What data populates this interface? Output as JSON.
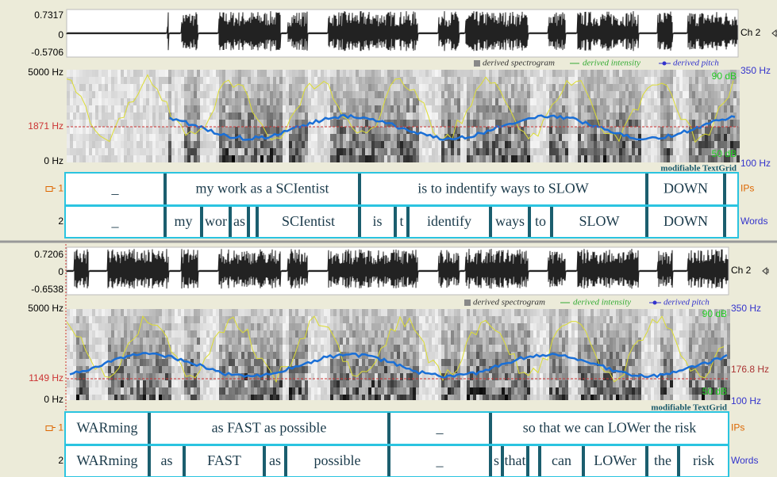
{
  "panels": [
    {
      "waveform": {
        "max": "0.7317",
        "zero": "0",
        "min": "-0.5706",
        "channel": "Ch 2"
      },
      "legend": {
        "spectrogram": "derived spectrogram",
        "intensity": "derived intensity",
        "pitch": "derived pitch"
      },
      "spectrogram": {
        "top": "5000 Hz",
        "marker": "1871 Hz",
        "bottom": "0 Hz",
        "pitch_top": "350 Hz",
        "pitch_bottom": "100 Hz",
        "db_top": "90 dB",
        "db_bottom": "50 dB"
      },
      "textgrid_label": "modifiable TextGrid",
      "tiers": [
        {
          "number": "1",
          "name": "IPs",
          "intervals": [
            "_",
            "my work as a SCIentist",
            "is to indentify ways to SLOW",
            "DOWN"
          ]
        },
        {
          "number": "2",
          "name": "Words",
          "intervals": [
            "_",
            "my",
            "wor",
            "as",
            "SCIentist",
            "is",
            "t",
            "identify",
            "ways",
            "to",
            "SLOW",
            "DOWN"
          ]
        }
      ]
    },
    {
      "waveform": {
        "max": "0.7206",
        "zero": "0",
        "min": "-0.6538",
        "channel": "Ch 2"
      },
      "legend": {
        "spectrogram": "derived spectrogram",
        "intensity": "derived intensity",
        "pitch": "derived pitch"
      },
      "spectrogram": {
        "top": "5000 Hz",
        "marker": "1149 Hz",
        "bottom": "0 Hz",
        "pitch_top": "350 Hz",
        "pitch_marker": "176.8 Hz",
        "pitch_bottom": "100 Hz",
        "db_top": "90 dB",
        "db_bottom": "50 dB"
      },
      "textgrid_label": "modifiable TextGrid",
      "tiers": [
        {
          "number": "1",
          "name": "IPs",
          "intervals": [
            "WARming",
            "as FAST as possible",
            "_",
            "so that we can LOWer the risk"
          ]
        },
        {
          "number": "2",
          "name": "Words",
          "intervals": [
            "WARming",
            "as",
            "FAST",
            "as",
            "possible",
            "_",
            "s",
            "that",
            "can",
            "LOWer",
            "the",
            "risk"
          ]
        }
      ]
    }
  ]
}
